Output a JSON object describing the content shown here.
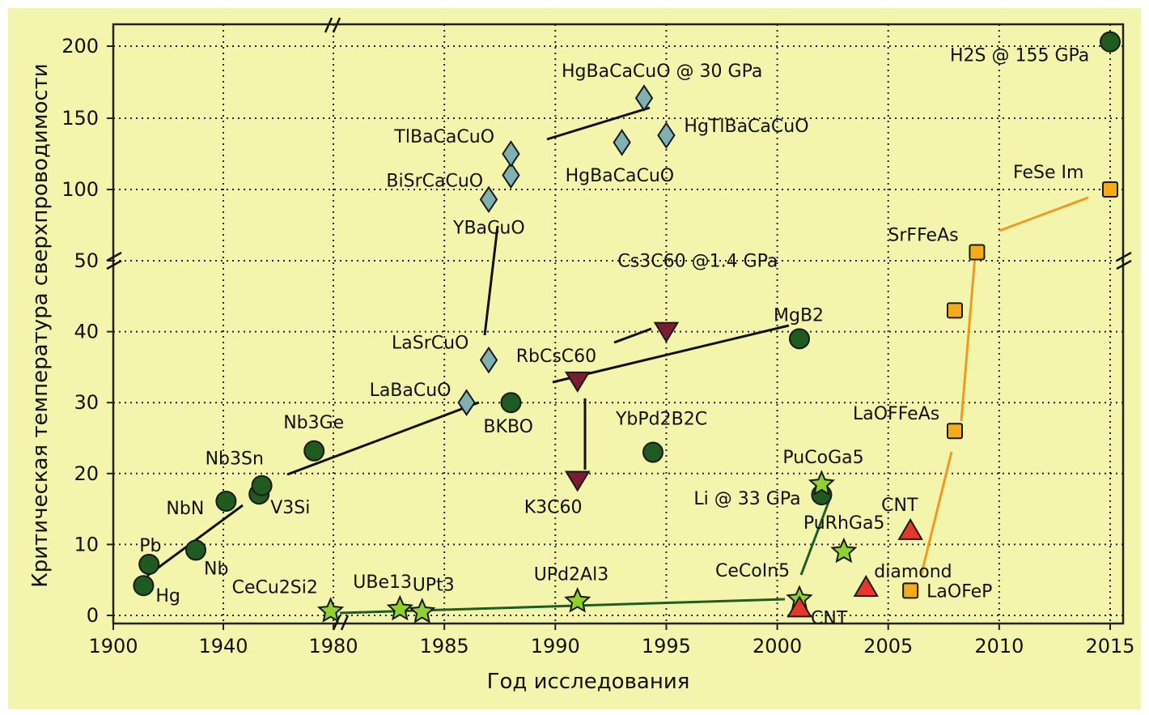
{
  "chart_data": {
    "type": "scatter",
    "xlabel": "Год исследования",
    "ylabel": "Критическая температура сверхпроводимости",
    "x_ticks": [
      "1900",
      "1940",
      "1980",
      "1985",
      "1990",
      "1995",
      "2000",
      "2005",
      "2010",
      "2015"
    ],
    "y_ticks": [
      "0",
      "10",
      "20",
      "30",
      "40",
      "50",
      "100",
      "150",
      "200"
    ],
    "grid": true,
    "colors": {
      "background": "#f3f5ad",
      "conventional": "#1f5a1f",
      "cuprate": "#7fb0b2",
      "fulleride": "#7a1d33",
      "heavy_fermion": "#8fd12e",
      "carbon": "#e6382a",
      "iron": "#f6ac19",
      "line_black": "#111111",
      "line_green": "#1e5e1e",
      "line_orange": "#f29a20"
    },
    "series": [
      {
        "marker": "circle",
        "points": [
          {
            "label": "Hg",
            "x": 1911,
            "y": 4.2
          },
          {
            "label": "Pb",
            "x": 1913,
            "y": 7.2
          },
          {
            "label": "Nb",
            "x": 1930,
            "y": 9.2
          },
          {
            "label": "NbN",
            "x": 1941,
            "y": 16.1
          },
          {
            "label": "V3Si",
            "x": 1953,
            "y": 17.1
          },
          {
            "label": "Nb3Sn",
            "x": 1954,
            "y": 18.3
          },
          {
            "label": "Nb3Ge",
            "x": 1973,
            "y": 23.2
          },
          {
            "label": "BKBO",
            "x": 1988,
            "y": 30
          },
          {
            "label": "YbPd2B2C",
            "x": 1994.4,
            "y": 23
          },
          {
            "label": "MgB2",
            "x": 2001,
            "y": 39
          },
          {
            "label": "Li @ 33 GPa",
            "x": 2002,
            "y": 17
          },
          {
            "label": "H2S @ 155 GPa",
            "x": 2015,
            "y": 203
          }
        ]
      },
      {
        "marker": "diamond",
        "points": [
          {
            "label": "LaBaCuO",
            "x": 1986,
            "y": 30
          },
          {
            "label": "LaSrCuO",
            "x": 1987,
            "y": 36
          },
          {
            "label": "YBaCuO",
            "x": 1987,
            "y": 93
          },
          {
            "label": "BiSrCaCuO",
            "x": 1988,
            "y": 110
          },
          {
            "label": "TlBaCaCuO",
            "x": 1988,
            "y": 125
          },
          {
            "label": "HgBaCaCuO",
            "x": 1993,
            "y": 133
          },
          {
            "label": "HgTlBaCaCuO",
            "x": 1995,
            "y": 138
          },
          {
            "label": "HgBaCaCuO @ 30 GPa",
            "x": 1994,
            "y": 164
          }
        ]
      },
      {
        "marker": "triangle-down",
        "points": [
          {
            "label": "K3C60",
            "x": 1991,
            "y": 19
          },
          {
            "label": "RbCsC60",
            "x": 1991,
            "y": 33
          },
          {
            "label": "Cs3C60 @1.4 GPa",
            "x": 1995,
            "y": 40
          }
        ]
      },
      {
        "marker": "star",
        "points": [
          {
            "label": "CeCu2Si2",
            "x": 1979,
            "y": 0.6
          },
          {
            "label": "UBe13",
            "x": 1983,
            "y": 0.9
          },
          {
            "label": "UPt3",
            "x": 1984,
            "y": 0.5
          },
          {
            "label": "UPd2Al3",
            "x": 1991,
            "y": 2
          },
          {
            "label": "CeCoIn5",
            "x": 2001,
            "y": 2.3
          },
          {
            "label": "PuRhGa5",
            "x": 2003,
            "y": 9
          },
          {
            "label": "PuCoGa5",
            "x": 2002,
            "y": 18.5
          }
        ]
      },
      {
        "marker": "triangle-up",
        "points": [
          {
            "label": "CNT",
            "x": 2001,
            "y": 1.1
          },
          {
            "label": "diamond",
            "x": 2004,
            "y": 4
          },
          {
            "label": "CNT",
            "x": 2006,
            "y": 12
          }
        ]
      },
      {
        "marker": "square",
        "points": [
          {
            "label": "LaOFeP",
            "x": 2006,
            "y": 3.5
          },
          {
            "label": "LaOFFeAs",
            "x": 2008,
            "y": 26
          },
          {
            "label": "",
            "x": 2008,
            "y": 43
          },
          {
            "label": "SrFFeAs",
            "x": 2009,
            "y": 56
          },
          {
            "label": "FeSe Im",
            "x": 2015,
            "y": 100
          }
        ]
      }
    ]
  }
}
